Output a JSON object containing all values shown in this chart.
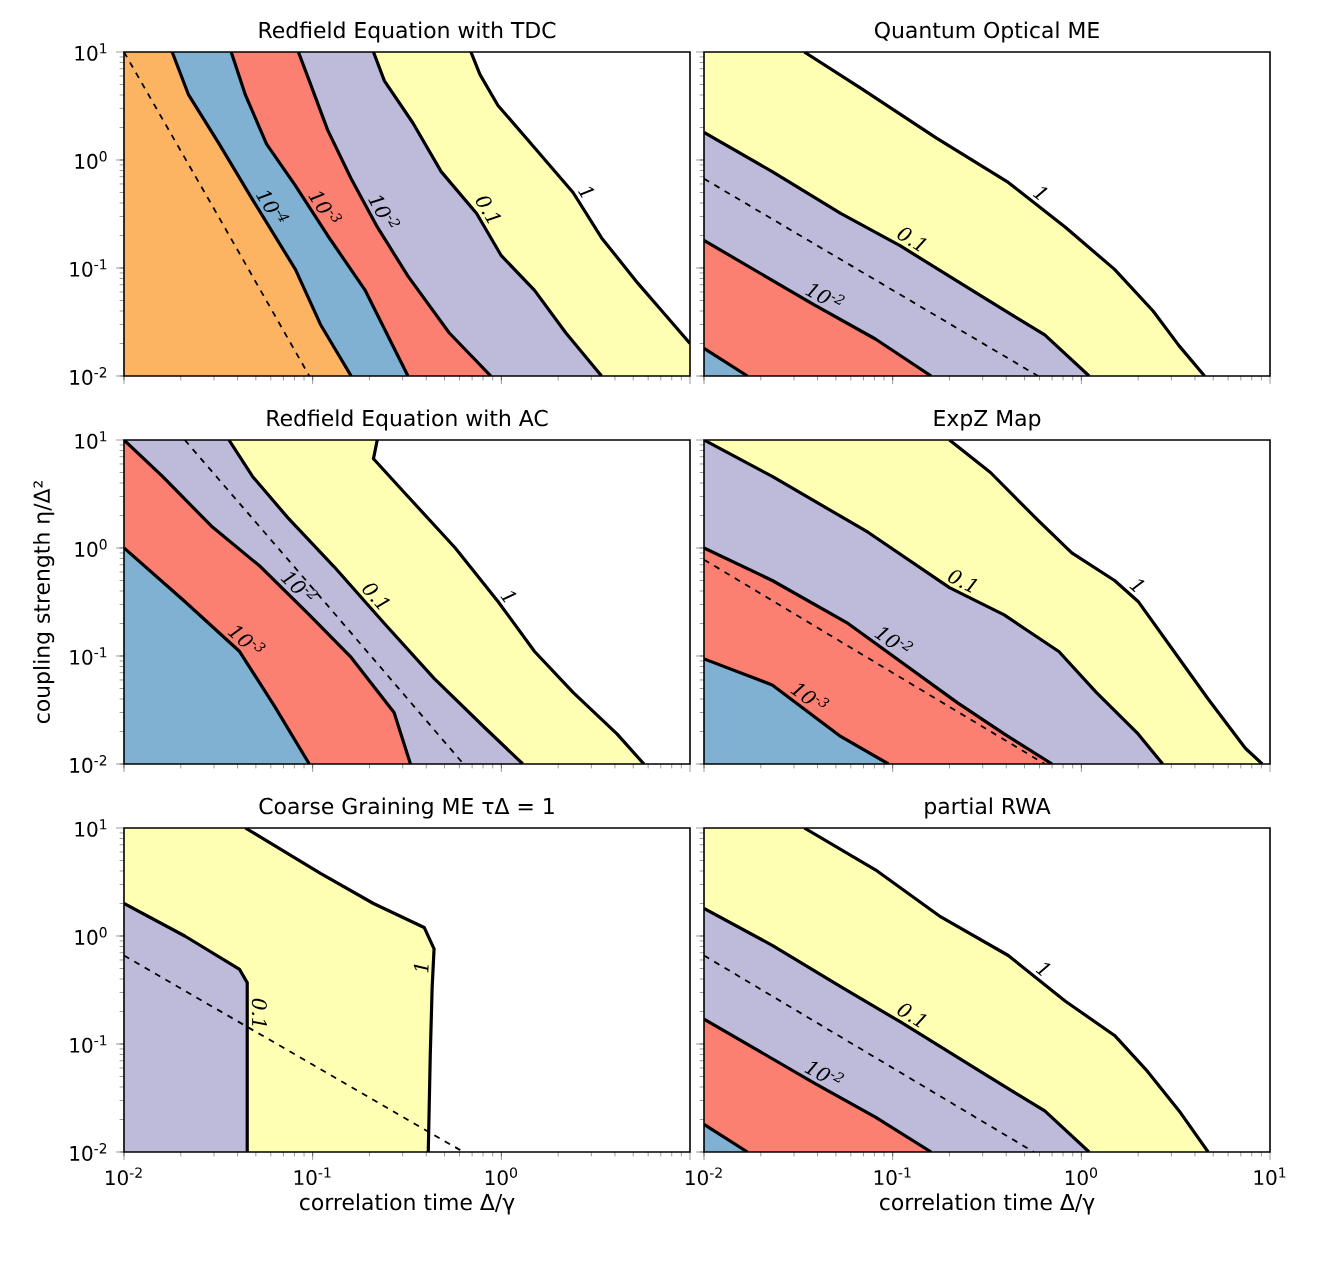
{
  "chart_data": [
    {
      "type": "area",
      "title": "Redfield Equation with TDC",
      "log": "xy",
      "tick_labels": "y",
      "xlim": [
        0.01,
        10
      ],
      "ylim": [
        0.01,
        10
      ],
      "xticks": [
        {
          "value": 0.01,
          "label": null
        },
        {
          "value": 0.1,
          "label": null
        },
        {
          "value": 1,
          "label": null
        },
        {
          "value": 10,
          "label": null
        }
      ],
      "yticks": [
        {
          "value": 0.01,
          "label": "10$^{-2}$"
        },
        {
          "value": 0.1,
          "label": "10$^{-1}$"
        },
        {
          "value": 1,
          "label": "10$^{0}$"
        },
        {
          "value": 10,
          "label": "10$^{1}$"
        }
      ],
      "series": [
        {
          "name": "1",
          "color": "#ffffb3",
          "x": [
            0.01,
            0.69,
            0.77,
            0.96,
            1.5,
            2.4,
            3.4,
            5.3,
            7.1,
            10,
            10,
            0.01
          ],
          "values": [
            10,
            10,
            6.2,
            3.2,
            1.3,
            0.5,
            0.19,
            0.072,
            0.04,
            0.02,
            0.01,
            0.01
          ]
        },
        {
          "name": "0.1",
          "color": "#bebada",
          "x": [
            0.01,
            0.21,
            0.24,
            0.34,
            0.48,
            0.74,
            1.0,
            1.5,
            2.2,
            3.4,
            0.01
          ],
          "values": [
            10,
            10,
            5.4,
            2.2,
            0.78,
            0.32,
            0.13,
            0.062,
            0.025,
            0.01,
            0.01
          ]
        },
        {
          "name": "10$^{-2}$",
          "color": "#fb8072",
          "x": [
            0.01,
            0.084,
            0.096,
            0.12,
            0.16,
            0.22,
            0.32,
            0.53,
            0.88,
            0.01
          ],
          "values": [
            10,
            10,
            5.4,
            1.9,
            0.67,
            0.24,
            0.084,
            0.025,
            0.01,
            0.01
          ]
        },
        {
          "name": "10$^{-3}$",
          "color": "#80b1d3",
          "x": [
            0.01,
            0.037,
            0.044,
            0.057,
            0.081,
            0.12,
            0.19,
            0.32,
            0.01
          ],
          "values": [
            10,
            10,
            4.0,
            1.4,
            0.58,
            0.2,
            0.062,
            0.01,
            0.01
          ]
        },
        {
          "name": "10$^{-4}$",
          "color": "#fdb462",
          "x": [
            0.01,
            0.018,
            0.022,
            0.032,
            0.048,
            0.081,
            0.11,
            0.16,
            0.01
          ],
          "values": [
            10,
            10,
            4.0,
            1.4,
            0.43,
            0.097,
            0.03,
            0.01,
            0.01
          ]
        },
        {
          "type": "line",
          "line_style": "dashed",
          "color": "#000000",
          "x": [
            0.01,
            0.031,
            0.096
          ],
          "values": [
            10,
            0.32,
            0.01
          ]
        }
      ]
    },
    {
      "type": "area",
      "title": "Quantum Optical ME",
      "log": "xy",
      "tick_labels": false,
      "xlim": [
        0.01,
        10
      ],
      "ylim": [
        0.01,
        10
      ],
      "xticks": [
        {
          "value": 0.01,
          "label": null
        },
        {
          "value": 0.1,
          "label": null
        },
        {
          "value": 1,
          "label": null
        },
        {
          "value": 10,
          "label": null
        }
      ],
      "yticks": [
        {
          "value": 0.01,
          "label": null
        },
        {
          "value": 0.1,
          "label": null
        },
        {
          "value": 1,
          "label": null
        },
        {
          "value": 10,
          "label": null
        }
      ],
      "series": [
        {
          "name": "1",
          "color": "#ffffb3",
          "x": [
            0.01,
            0.034,
            0.068,
            0.17,
            0.41,
            0.82,
            1.5,
            2.4,
            3.3,
            4.5,
            0.01
          ],
          "values": [
            10,
            10,
            4.6,
            1.6,
            0.62,
            0.24,
            0.097,
            0.04,
            0.019,
            0.01,
            0.01
          ]
        },
        {
          "name": "0.1",
          "color": "#bebada",
          "x": [
            0.01,
            0.023,
            0.053,
            0.11,
            0.3,
            0.64,
            1.1,
            0.01
          ],
          "values": [
            1.8,
            0.78,
            0.32,
            0.16,
            0.054,
            0.024,
            0.01,
            0.01
          ]
        },
        {
          "name": "10$^{-2}$",
          "color": "#fb8072",
          "x": [
            0.01,
            0.038,
            0.081,
            0.16,
            0.01
          ],
          "values": [
            0.18,
            0.046,
            0.022,
            0.01,
            0.01
          ]
        },
        {
          "color": "#80b1d3",
          "x": [
            0.01,
            0.017,
            0.01
          ],
          "values": [
            0.018,
            0.01,
            0.01
          ]
        },
        {
          "type": "line",
          "line_style": "dashed",
          "color": "#000000",
          "x": [
            0.01,
            0.59
          ],
          "values": [
            0.67,
            0.01
          ]
        }
      ]
    },
    {
      "type": "area",
      "title": "Redfield Equation with AC",
      "ylabel": "coupling strength η/Δ²",
      "log": "xy",
      "tick_labels": "y",
      "xlim": [
        0.01,
        10
      ],
      "ylim": [
        0.01,
        10
      ],
      "xticks": [
        {
          "value": 0.01,
          "label": null
        },
        {
          "value": 0.1,
          "label": null
        },
        {
          "value": 1,
          "label": null
        },
        {
          "value": 10,
          "label": null
        }
      ],
      "yticks": [
        {
          "value": 0.01,
          "label": "10$^{-2}$"
        },
        {
          "value": 0.1,
          "label": "10$^{-1}$"
        },
        {
          "value": 1,
          "label": "10$^{0}$"
        },
        {
          "value": 10,
          "label": "10$^{1}$"
        }
      ],
      "series": [
        {
          "name": "1",
          "color": "#ffffb3",
          "x": [
            0.01,
            0.22,
            0.21,
            0.32,
            0.57,
            0.96,
            1.5,
            2.4,
            4.1,
            5.7,
            0.01
          ],
          "values": [
            10,
            10,
            6.7,
            3.0,
            1.0,
            0.32,
            0.11,
            0.046,
            0.019,
            0.01,
            0.01
          ]
        },
        {
          "name": "0.1",
          "color": "#bebada",
          "x": [
            0.01,
            0.036,
            0.048,
            0.074,
            0.13,
            0.24,
            0.44,
            0.81,
            1.3,
            0.01
          ],
          "values": [
            10,
            10,
            4.6,
            1.9,
            0.67,
            0.2,
            0.062,
            0.022,
            0.01,
            0.01
          ]
        },
        {
          "name": "10$^{-2}$",
          "color": "#fb8072",
          "x": [
            0.01,
            0.016,
            0.029,
            0.053,
            0.096,
            0.16,
            0.27,
            0.33,
            0.01
          ],
          "values": [
            10,
            4.6,
            1.6,
            0.67,
            0.24,
            0.097,
            0.03,
            0.01,
            0.01
          ]
        },
        {
          "name": "10$^{-3}$",
          "color": "#80b1d3",
          "x": [
            0.01,
            0.021,
            0.041,
            0.063,
            0.096,
            0.01
          ],
          "values": [
            1.0,
            0.32,
            0.11,
            0.034,
            0.01,
            0.01
          ]
        },
        {
          "type": "line",
          "line_style": "dashed",
          "color": "#000000",
          "x": [
            0.021,
            0.115,
            0.63
          ],
          "values": [
            10,
            0.32,
            0.01
          ]
        }
      ]
    },
    {
      "type": "area",
      "title": "ExpZ Map",
      "log": "xy",
      "tick_labels": false,
      "xlim": [
        0.01,
        10
      ],
      "ylim": [
        0.01,
        10
      ],
      "xticks": [
        {
          "value": 0.01,
          "label": null
        },
        {
          "value": 0.1,
          "label": null
        },
        {
          "value": 1,
          "label": null
        },
        {
          "value": 10,
          "label": null
        }
      ],
      "yticks": [
        {
          "value": 0.01,
          "label": null
        },
        {
          "value": 0.1,
          "label": null
        },
        {
          "value": 1,
          "label": null
        },
        {
          "value": 10,
          "label": null
        }
      ],
      "series": [
        {
          "name": "1",
          "color": "#ffffb3",
          "x": [
            0.01,
            0.2,
            0.33,
            0.59,
            0.89,
            1.5,
            2.0,
            3.1,
            4.7,
            7.4,
            9.1,
            0.01
          ],
          "values": [
            10,
            10,
            5.0,
            1.8,
            0.9,
            0.5,
            0.32,
            0.11,
            0.04,
            0.014,
            0.01,
            0.01
          ]
        },
        {
          "name": "0.1",
          "color": "#bebada",
          "x": [
            0.01,
            0.023,
            0.074,
            0.2,
            0.39,
            0.76,
            1.2,
            2.0,
            2.7,
            0.01
          ],
          "values": [
            10,
            4.6,
            1.4,
            0.43,
            0.24,
            0.11,
            0.046,
            0.019,
            0.01,
            0.01
          ]
        },
        {
          "name": "10$^{-2}$",
          "color": "#fb8072",
          "x": [
            0.01,
            0.023,
            0.058,
            0.22,
            0.39,
            0.7,
            0.01
          ],
          "values": [
            1.0,
            0.5,
            0.2,
            0.037,
            0.019,
            0.01,
            0.01
          ]
        },
        {
          "name": "10$^{-3}$",
          "color": "#80b1d3",
          "x": [
            0.01,
            0.023,
            0.053,
            0.095,
            0.01
          ],
          "values": [
            0.094,
            0.054,
            0.018,
            0.01,
            0.01
          ]
        },
        {
          "type": "line",
          "line_style": "dashed",
          "color": "#000000",
          "x": [
            0.01,
            0.64
          ],
          "values": [
            0.78,
            0.01
          ]
        }
      ]
    },
    {
      "type": "area",
      "title": "Coarse Graining ME τΔ = 1",
      "xlabel": "correlation time Δ/γ",
      "log": "xy",
      "xlim": [
        0.01,
        10
      ],
      "ylim": [
        0.01,
        10
      ],
      "xticks": [
        {
          "value": 0.01,
          "label": "10$^{-2}$"
        },
        {
          "value": 0.1,
          "label": "10$^{-1}$"
        },
        {
          "value": 1,
          "label": "10$^{0}$"
        },
        {
          "value": 10,
          "label": null
        }
      ],
      "yticks": [
        {
          "value": 0.01,
          "label": "10$^{-2}$"
        },
        {
          "value": 0.1,
          "label": "10$^{-1}$"
        },
        {
          "value": 1,
          "label": "10$^{0}$"
        },
        {
          "value": 10,
          "label": "10$^{1}$"
        }
      ],
      "series": [
        {
          "name": "1",
          "color": "#ffffb3",
          "x": [
            0.01,
            0.044,
            0.11,
            0.21,
            0.39,
            0.44,
            0.43,
            0.42,
            0.41,
            0.01
          ],
          "values": [
            10,
            10,
            3.8,
            2.0,
            1.2,
            0.76,
            0.34,
            0.078,
            0.01,
            0.01
          ]
        },
        {
          "name": "0.1",
          "color": "#bebada",
          "x": [
            0.01,
            0.021,
            0.041,
            0.045,
            0.045,
            0.01
          ],
          "values": [
            2.0,
            1.0,
            0.49,
            0.37,
            0.01,
            0.01
          ]
        },
        {
          "type": "line",
          "line_style": "dashed",
          "color": "#000000",
          "x": [
            0.01,
            0.63
          ],
          "values": [
            0.66,
            0.01
          ]
        }
      ]
    },
    {
      "type": "area",
      "title": "partial RWA",
      "xlabel": "correlation time Δ/γ",
      "log": "xy",
      "tick_labels": "x",
      "xlim": [
        0.01,
        10
      ],
      "ylim": [
        0.01,
        10
      ],
      "xticks": [
        {
          "value": 0.01,
          "label": "10$^{-2}$"
        },
        {
          "value": 0.1,
          "label": "10$^{-1}$"
        },
        {
          "value": 1,
          "label": "10$^{0}$"
        },
        {
          "value": 10,
          "label": "10$^{1}$"
        }
      ],
      "yticks": [
        {
          "value": 0.01,
          "label": null
        },
        {
          "value": 0.1,
          "label": null
        },
        {
          "value": 1,
          "label": null
        },
        {
          "value": 10,
          "label": null
        }
      ],
      "series": [
        {
          "name": "1",
          "color": "#ffffb3",
          "x": [
            0.01,
            0.034,
            0.081,
            0.18,
            0.41,
            0.82,
            1.5,
            2.2,
            3.3,
            4.7,
            0.01
          ],
          "values": [
            10,
            10,
            4.1,
            1.5,
            0.66,
            0.25,
            0.12,
            0.058,
            0.024,
            0.01,
            0.01
          ]
        },
        {
          "name": "0.1",
          "color": "#bebada",
          "x": [
            0.01,
            0.023,
            0.053,
            0.11,
            0.3,
            0.64,
            1.1,
            0.01
          ],
          "values": [
            1.8,
            0.82,
            0.34,
            0.16,
            0.054,
            0.024,
            0.01,
            0.01
          ]
        },
        {
          "name": "10$^{-2}$",
          "color": "#fb8072",
          "x": [
            0.01,
            0.038,
            0.081,
            0.16,
            0.01
          ],
          "values": [
            0.17,
            0.044,
            0.021,
            0.01,
            0.01
          ]
        },
        {
          "color": "#80b1d3",
          "x": [
            0.01,
            0.017,
            0.01
          ],
          "values": [
            0.018,
            0.01,
            0.01
          ]
        },
        {
          "type": "line",
          "line_style": "dashed",
          "color": "#000000",
          "x": [
            0.01,
            0.56
          ],
          "values": [
            0.66,
            0.01
          ]
        }
      ]
    }
  ]
}
